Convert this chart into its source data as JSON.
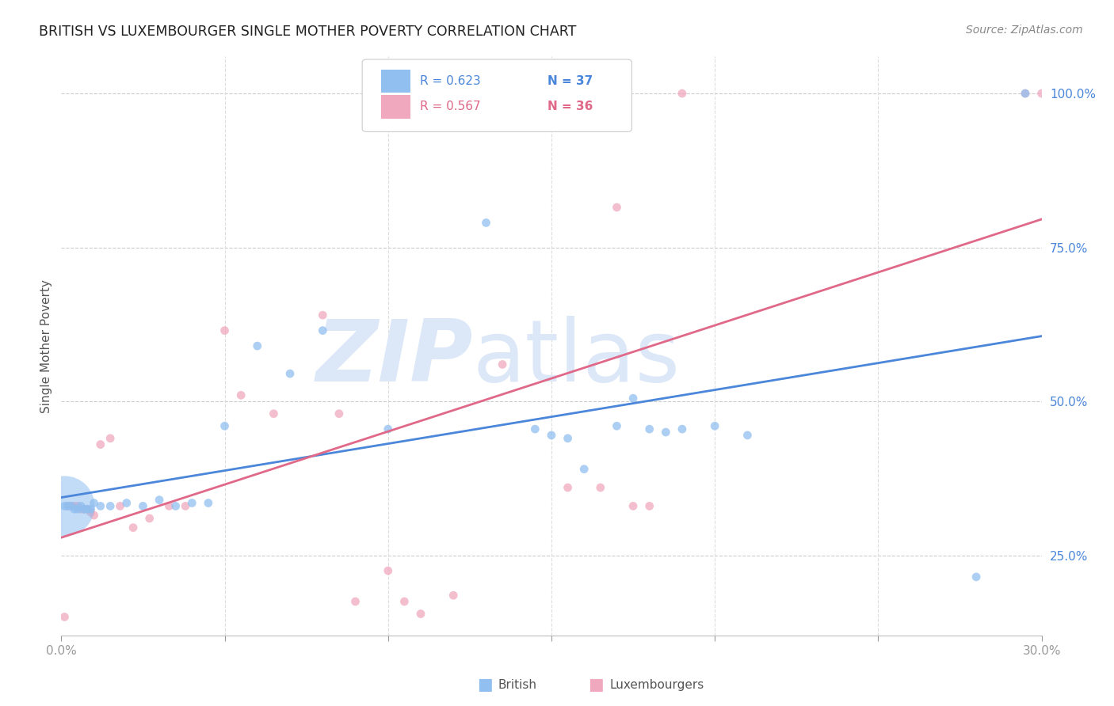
{
  "title": "BRITISH VS LUXEMBOURGER SINGLE MOTHER POVERTY CORRELATION CHART",
  "source": "Source: ZipAtlas.com",
  "ylabel": "Single Mother Poverty",
  "xlim": [
    0.0,
    0.3
  ],
  "ylim": [
    0.12,
    1.06
  ],
  "xtick_positions": [
    0.0,
    0.05,
    0.1,
    0.15,
    0.2,
    0.25,
    0.3
  ],
  "xticklabels": [
    "0.0%",
    "",
    "",
    "",
    "",
    "",
    "30.0%"
  ],
  "yticks_right": [
    0.25,
    0.5,
    0.75,
    1.0
  ],
  "ytick_right_labels": [
    "25.0%",
    "50.0%",
    "75.0%",
    "100.0%"
  ],
  "british_color": "#90bff0",
  "luxembourg_color": "#f0a8be",
  "british_line_color": "#4a86d9",
  "luxembourg_line_color": "#e06888",
  "R_british": 0.623,
  "N_british": 37,
  "R_luxembourg": 0.567,
  "N_luxembourg": 36,
  "watermark": "ZIPatlas",
  "watermark_color": "#dce8f8",
  "legend_label_british": "British",
  "legend_label_luxembourg": "Luxembourgers",
  "british_x": [
    0.001,
    0.002,
    0.003,
    0.004,
    0.005,
    0.006,
    0.007,
    0.008,
    0.009,
    0.01,
    0.012,
    0.015,
    0.02,
    0.025,
    0.03,
    0.035,
    0.04,
    0.045,
    0.05,
    0.06,
    0.07,
    0.08,
    0.1,
    0.13,
    0.145,
    0.15,
    0.155,
    0.16,
    0.17,
    0.175,
    0.18,
    0.185,
    0.19,
    0.2,
    0.21,
    0.28,
    0.295
  ],
  "british_y": [
    0.33,
    0.33,
    0.33,
    0.325,
    0.325,
    0.33,
    0.325,
    0.325,
    0.325,
    0.335,
    0.33,
    0.33,
    0.335,
    0.33,
    0.34,
    0.33,
    0.335,
    0.335,
    0.46,
    0.59,
    0.545,
    0.615,
    0.455,
    0.79,
    0.455,
    0.445,
    0.44,
    0.39,
    0.46,
    0.505,
    0.455,
    0.45,
    0.455,
    0.46,
    0.445,
    0.215,
    1.0
  ],
  "british_sizes": [
    60,
    60,
    60,
    60,
    60,
    60,
    60,
    60,
    60,
    60,
    60,
    60,
    60,
    60,
    60,
    60,
    60,
    60,
    60,
    60,
    60,
    60,
    60,
    60,
    60,
    60,
    60,
    60,
    60,
    60,
    60,
    60,
    60,
    60,
    60,
    60,
    60
  ],
  "british_big_x": [
    0.001
  ],
  "british_big_y": [
    0.33
  ],
  "british_big_size": [
    3000
  ],
  "luxembourg_x": [
    0.001,
    0.002,
    0.003,
    0.004,
    0.005,
    0.006,
    0.007,
    0.008,
    0.009,
    0.01,
    0.012,
    0.015,
    0.018,
    0.022,
    0.027,
    0.033,
    0.038,
    0.05,
    0.055,
    0.065,
    0.08,
    0.085,
    0.09,
    0.1,
    0.105,
    0.11,
    0.12,
    0.135,
    0.155,
    0.165,
    0.17,
    0.175,
    0.18,
    0.19,
    0.295,
    0.3
  ],
  "luxembourg_y": [
    0.15,
    0.33,
    0.33,
    0.33,
    0.33,
    0.325,
    0.325,
    0.325,
    0.32,
    0.315,
    0.43,
    0.44,
    0.33,
    0.295,
    0.31,
    0.33,
    0.33,
    0.615,
    0.51,
    0.48,
    0.64,
    0.48,
    0.175,
    0.225,
    0.175,
    0.155,
    0.185,
    0.56,
    0.36,
    0.36,
    0.815,
    0.33,
    0.33,
    1.0,
    1.0,
    1.0
  ],
  "luxembourg_sizes": [
    60,
    60,
    60,
    60,
    60,
    60,
    60,
    60,
    60,
    60,
    60,
    60,
    60,
    60,
    60,
    60,
    60,
    60,
    60,
    60,
    60,
    60,
    60,
    60,
    60,
    60,
    60,
    60,
    60,
    60,
    60,
    60,
    60,
    60,
    60,
    60
  ]
}
